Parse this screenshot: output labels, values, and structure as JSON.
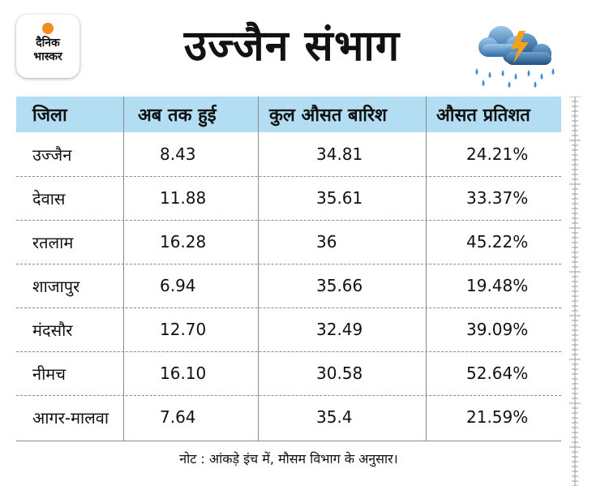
{
  "logo": {
    "line1": "दैनिक",
    "line2": "भास्कर"
  },
  "title": "उज्जैन संभाग",
  "weather_icon": "thunderstorm-rain-icon",
  "table": {
    "headers": [
      "जिला",
      "अब तक हुई",
      "कुल औसत बारिश",
      "औसत प्रतिशत"
    ],
    "rows": [
      [
        "उज्जैन",
        "8.43",
        "34.81",
        "24.21%"
      ],
      [
        "देवास",
        "11.88",
        "35.61",
        "33.37%"
      ],
      [
        "रतलाम",
        "16.28",
        "36",
        "45.22%"
      ],
      [
        "शाजापुर",
        "6.94",
        "35.66",
        "19.48%"
      ],
      [
        "मंदसौर",
        "12.70",
        "32.49",
        "39.09%"
      ],
      [
        "नीमच",
        "16.10",
        "30.58",
        "52.64%"
      ],
      [
        "आगर-मालवा",
        "7.64",
        "35.4",
        "21.59%"
      ]
    ]
  },
  "note": "नोट : आंकड़े इंच में, मौसम विभाग के अनुसार।",
  "colors": {
    "header_bg": "#b3ddf2",
    "logo_sun": "#f28c1c",
    "cloud": "#4a7fb0",
    "bolt": "#f2a21c",
    "rain": "#3a8fd0"
  }
}
